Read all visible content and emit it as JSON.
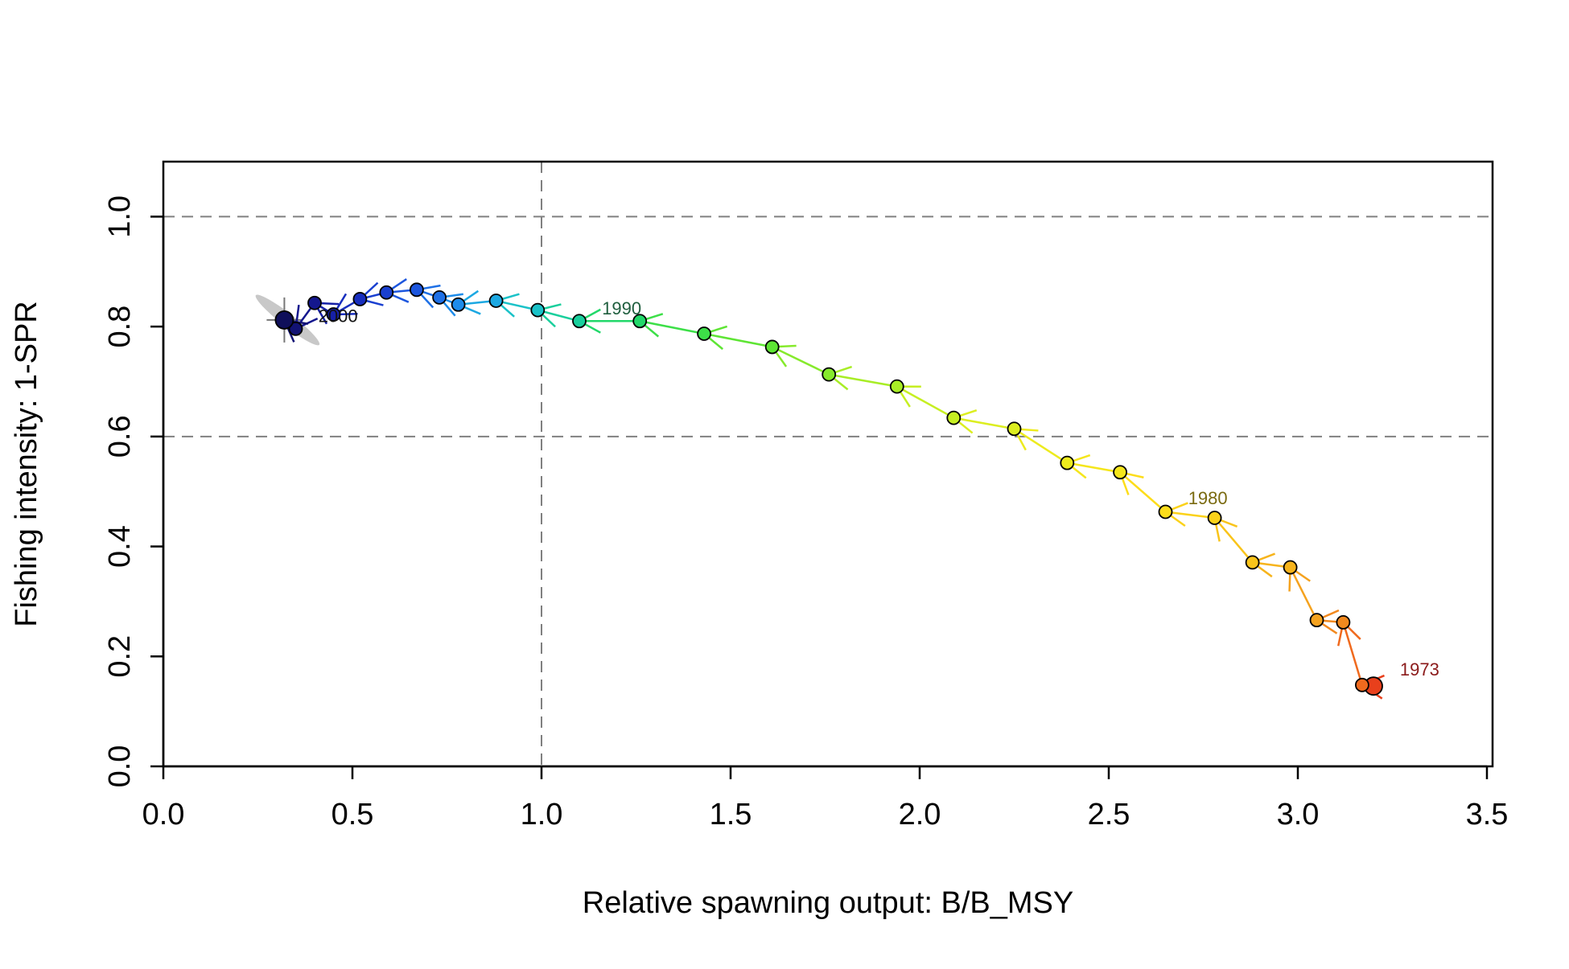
{
  "chart_data": {
    "type": "scatter",
    "title": "",
    "xlabel": "Relative spawning output: B/B_MSY",
    "ylabel": "Fishing intensity: 1-SPR",
    "xlim": [
      0.0,
      3.5
    ],
    "ylim": [
      0.0,
      1.1
    ],
    "x_ticks": [
      0.0,
      0.5,
      1.0,
      1.5,
      2.0,
      2.5,
      3.0,
      3.5
    ],
    "x_tick_labels": [
      "0.0",
      "0.5",
      "1.0",
      "1.5",
      "2.0",
      "2.5",
      "3.0",
      "3.5"
    ],
    "y_ticks": [
      0.0,
      0.2,
      0.4,
      0.6,
      0.8,
      1.0
    ],
    "y_tick_labels": [
      "0.0",
      "0.2",
      "0.4",
      "0.6",
      "0.8",
      "1.0"
    ],
    "reference_lines": {
      "horizontal": [
        1.0,
        0.6
      ],
      "vertical": [
        1.0
      ],
      "style": "dashed",
      "color": "#808080"
    },
    "grid": false,
    "legend": "none",
    "series": [
      {
        "points": [
          {
            "x": 3.2,
            "y": 0.146,
            "color": "#E8401C"
          },
          {
            "x": 3.17,
            "y": 0.148,
            "color": "#F06A1E"
          },
          {
            "x": 3.12,
            "y": 0.262,
            "color": "#F2891E"
          },
          {
            "x": 3.05,
            "y": 0.266,
            "color": "#F5A21E"
          },
          {
            "x": 2.98,
            "y": 0.362,
            "color": "#F7B41C"
          },
          {
            "x": 2.88,
            "y": 0.371,
            "color": "#F9C41A"
          },
          {
            "x": 2.78,
            "y": 0.452,
            "color": "#FBD21A"
          },
          {
            "x": 2.65,
            "y": 0.463,
            "color": "#FDDD1A"
          },
          {
            "x": 2.53,
            "y": 0.535,
            "color": "#F5E61C"
          },
          {
            "x": 2.39,
            "y": 0.552,
            "color": "#EDEB1E"
          },
          {
            "x": 2.25,
            "y": 0.614,
            "color": "#DCEE20"
          },
          {
            "x": 2.09,
            "y": 0.634,
            "color": "#C6EF22"
          },
          {
            "x": 1.94,
            "y": 0.691,
            "color": "#A8ED26"
          },
          {
            "x": 1.76,
            "y": 0.713,
            "color": "#86EA2C"
          },
          {
            "x": 1.61,
            "y": 0.763,
            "color": "#5EE534"
          },
          {
            "x": 1.43,
            "y": 0.787,
            "color": "#3DDF48"
          },
          {
            "x": 1.26,
            "y": 0.81,
            "color": "#22D86A"
          },
          {
            "x": 1.1,
            "y": 0.81,
            "color": "#19CF9C"
          },
          {
            "x": 0.99,
            "y": 0.83,
            "color": "#1AC2C8"
          },
          {
            "x": 0.88,
            "y": 0.847,
            "color": "#1CA8E2"
          },
          {
            "x": 0.78,
            "y": 0.84,
            "color": "#1E8CEA"
          },
          {
            "x": 0.73,
            "y": 0.853,
            "color": "#1E70E6"
          },
          {
            "x": 0.67,
            "y": 0.867,
            "color": "#1C56DE"
          },
          {
            "x": 0.59,
            "y": 0.862,
            "color": "#1A40D0"
          },
          {
            "x": 0.52,
            "y": 0.85,
            "color": "#182EBE"
          },
          {
            "x": 0.45,
            "y": 0.822,
            "color": "#1620A6"
          },
          {
            "x": 0.4,
            "y": 0.843,
            "color": "#14178E"
          },
          {
            "x": 0.35,
            "y": 0.796,
            "color": "#121274"
          },
          {
            "x": 0.32,
            "y": 0.812,
            "color": "#0F0F5A"
          }
        ]
      }
    ],
    "annotations": [
      {
        "text": "1973",
        "x": 3.27,
        "y": 0.165,
        "color": "#8B1A1A"
      },
      {
        "text": "1980",
        "x": 2.71,
        "y": 0.477,
        "color": "#7A6A10"
      },
      {
        "text": "1990",
        "x": 1.16,
        "y": 0.822,
        "color": "#1F5E3E"
      },
      {
        "text": "2000",
        "x": 0.41,
        "y": 0.808,
        "color": "#111111"
      }
    ]
  }
}
